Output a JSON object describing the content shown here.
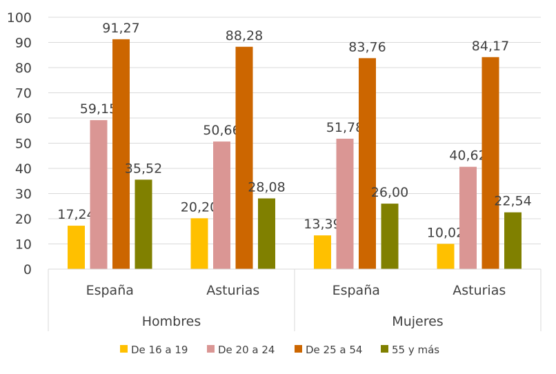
{
  "chart_data": {
    "type": "bar",
    "ylim": [
      0,
      100
    ],
    "yticks": [
      "0",
      "10",
      "20",
      "30",
      "40",
      "50",
      "60",
      "70",
      "80",
      "90",
      "100"
    ],
    "grid": true,
    "legend_position": "bottom",
    "groups": [
      {
        "label": "Hombres",
        "categories": [
          "España",
          "Asturias"
        ]
      },
      {
        "label": "Mujeres",
        "categories": [
          "España",
          "Asturias"
        ]
      }
    ],
    "categories": [
      "España",
      "Asturias",
      "España",
      "Asturias"
    ],
    "series": [
      {
        "name": "De 16 a 19",
        "color": "#FFC000",
        "values": [
          17.24,
          20.2,
          13.39,
          10.02
        ],
        "labels": [
          "17,24",
          "20,20",
          "13,39",
          "10,02"
        ]
      },
      {
        "name": "De 20 a 24",
        "color": "#DA9694",
        "values": [
          59.15,
          50.66,
          51.78,
          40.62
        ],
        "labels": [
          "59,15",
          "50,66",
          "51,78",
          "40,62"
        ]
      },
      {
        "name": "De 25 a 54",
        "color": "#CC6600",
        "values": [
          91.27,
          88.28,
          83.76,
          84.17
        ],
        "labels": [
          "91,27",
          "88,28",
          "83,76",
          "84,17"
        ]
      },
      {
        "name": "55 y más",
        "color": "#808000",
        "values": [
          35.52,
          28.08,
          26.0,
          22.54
        ],
        "labels": [
          "35,52",
          "28,08",
          "26,00",
          "22,54"
        ]
      }
    ]
  }
}
